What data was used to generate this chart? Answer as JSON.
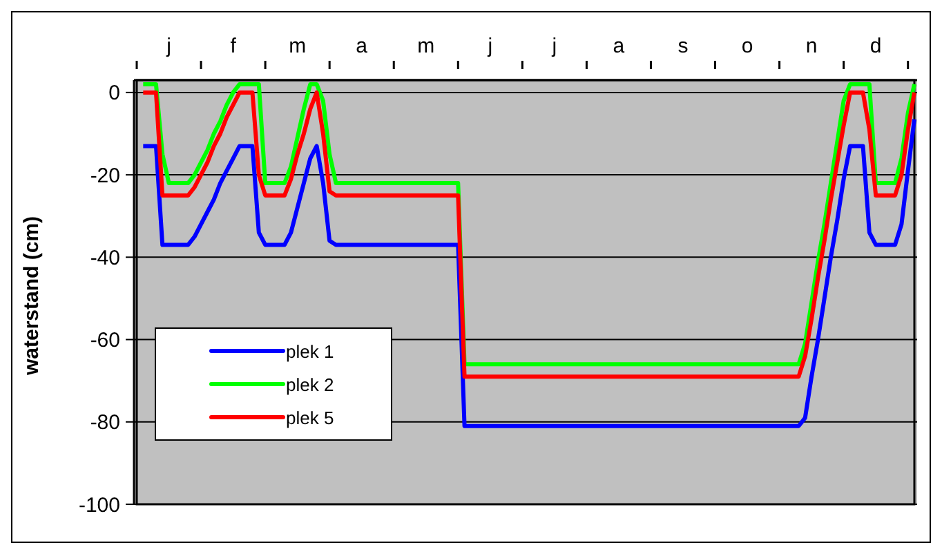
{
  "chart_data": {
    "type": "line",
    "ylabel": "waterstand (cm)",
    "categories": [
      null,
      null,
      null,
      null,
      null,
      "j",
      null,
      null,
      null,
      null,
      null,
      null,
      null,
      null,
      null,
      "f",
      null,
      null,
      null,
      null,
      null,
      null,
      null,
      null,
      null,
      "m",
      null,
      null,
      null,
      null,
      null,
      null,
      null,
      null,
      null,
      "a",
      null,
      null,
      null,
      null,
      null,
      null,
      null,
      null,
      null,
      "m",
      null,
      null,
      null,
      null,
      null,
      null,
      null,
      null,
      null,
      "j",
      null,
      null,
      null,
      null,
      null,
      null,
      null,
      null,
      null,
      "j",
      null,
      null,
      null,
      null,
      null,
      null,
      null,
      null,
      null,
      "a",
      null,
      null,
      null,
      null,
      null,
      null,
      null,
      null,
      null,
      "s",
      null,
      null,
      null,
      null,
      null,
      null,
      null,
      null,
      null,
      "o",
      null,
      null,
      null,
      null,
      null,
      null,
      null,
      null,
      null,
      "n",
      null,
      null,
      null,
      null,
      null,
      null,
      null,
      null,
      null,
      "d",
      null,
      null,
      null,
      null,
      null,
      null
    ],
    "ylim": [
      -100,
      3
    ],
    "yticks": [
      -100,
      -80,
      -60,
      -40,
      -20,
      0
    ],
    "grid": "y",
    "legend": "bottom left",
    "marker": "none",
    "line_style": "solid",
    "series": [
      {
        "name": "plek 1",
        "color": "#0000ff",
        "values": [
          null,
          -13,
          -13,
          -13,
          -37,
          -37,
          -37,
          -37,
          -37,
          -35,
          -32,
          -29,
          -26,
          -22,
          -19,
          -16,
          -13,
          -13,
          -13,
          -34,
          -37,
          -37,
          -37,
          -37,
          -34,
          -28,
          -22,
          -16,
          -13,
          -22,
          -36,
          -37,
          -37,
          -37,
          -37,
          -37,
          -37,
          -37,
          -37,
          -37,
          -37,
          -37,
          -37,
          -37,
          -37,
          -37,
          -37,
          -37,
          -37,
          -37,
          -37,
          -81,
          -81,
          -81,
          -81,
          -81,
          -81,
          -81,
          -81,
          -81,
          -81,
          -81,
          -81,
          -81,
          -81,
          -81,
          -81,
          -81,
          -81,
          -81,
          -81,
          -81,
          -81,
          -81,
          -81,
          -81,
          -81,
          -81,
          -81,
          -81,
          -81,
          -81,
          -81,
          -81,
          -81,
          -81,
          -81,
          -81,
          -81,
          -81,
          -81,
          -81,
          -81,
          -81,
          -81,
          -81,
          -81,
          -81,
          -81,
          -81,
          -81,
          -81,
          -81,
          -81,
          -79,
          -69,
          -60,
          -50,
          -40,
          -31,
          -21,
          -13,
          -13,
          -13,
          -34,
          -37,
          -37,
          -37,
          -37,
          -32,
          -19,
          -6.5
        ]
      },
      {
        "name": "plek 2",
        "color": "#00ff00",
        "values": [
          null,
          2,
          2,
          2,
          -15,
          -22,
          -22,
          -22,
          -22,
          -20,
          -17,
          -14,
          -10,
          -7,
          -3,
          0,
          2,
          2,
          2,
          2,
          -22,
          -22,
          -22,
          -22,
          -18,
          -11,
          -4,
          2,
          2,
          -2,
          -15,
          -22,
          -22,
          -22,
          -22,
          -22,
          -22,
          -22,
          -22,
          -22,
          -22,
          -22,
          -22,
          -22,
          -22,
          -22,
          -22,
          -22,
          -22,
          -22,
          -22,
          -66,
          -66,
          -66,
          -66,
          -66,
          -66,
          -66,
          -66,
          -66,
          -66,
          -66,
          -66,
          -66,
          -66,
          -66,
          -66,
          -66,
          -66,
          -66,
          -66,
          -66,
          -66,
          -66,
          -66,
          -66,
          -66,
          -66,
          -66,
          -66,
          -66,
          -66,
          -66,
          -66,
          -66,
          -66,
          -66,
          -66,
          -66,
          -66,
          -66,
          -66,
          -66,
          -66,
          -66,
          -66,
          -66,
          -66,
          -66,
          -66,
          -66,
          -66,
          -66,
          -66,
          -61,
          -51,
          -41,
          -32,
          -22,
          -12,
          -2,
          2,
          2,
          2,
          2,
          -22,
          -22,
          -22,
          -22,
          -16,
          -5,
          2
        ]
      },
      {
        "name": "plek 5",
        "color": "#ff0000",
        "values": [
          null,
          0,
          0,
          0,
          -25,
          -25,
          -25,
          -25,
          -25,
          -23,
          -20,
          -17,
          -13,
          -10,
          -6,
          -3,
          0,
          0,
          0,
          -20,
          -25,
          -25,
          -25,
          -25,
          -21,
          -15,
          -10,
          -4,
          0,
          -10,
          -24,
          -25,
          -25,
          -25,
          -25,
          -25,
          -25,
          -25,
          -25,
          -25,
          -25,
          -25,
          -25,
          -25,
          -25,
          -25,
          -25,
          -25,
          -25,
          -25,
          -25,
          -69,
          -69,
          -69,
          -69,
          -69,
          -69,
          -69,
          -69,
          -69,
          -69,
          -69,
          -69,
          -69,
          -69,
          -69,
          -69,
          -69,
          -69,
          -69,
          -69,
          -69,
          -69,
          -69,
          -69,
          -69,
          -69,
          -69,
          -69,
          -69,
          -69,
          -69,
          -69,
          -69,
          -69,
          -69,
          -69,
          -69,
          -69,
          -69,
          -69,
          -69,
          -69,
          -69,
          -69,
          -69,
          -69,
          -69,
          -69,
          -69,
          -69,
          -69,
          -69,
          -69,
          -64,
          -55,
          -45,
          -36,
          -26,
          -17,
          -8,
          0,
          0,
          0,
          -9,
          -25,
          -25,
          -25,
          -25,
          -20,
          -9,
          0
        ]
      }
    ]
  }
}
